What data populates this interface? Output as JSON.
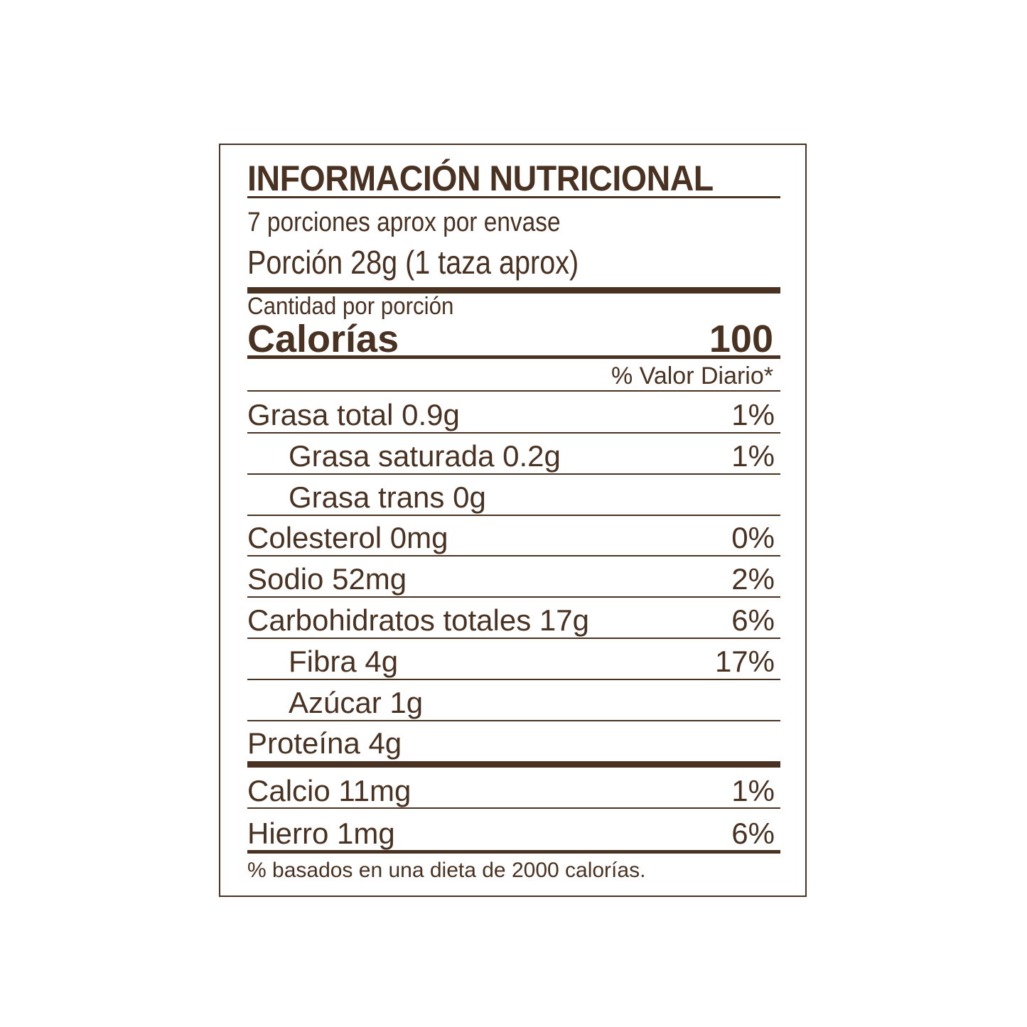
{
  "label": {
    "title": "INFORMACIÓN NUTRICIONAL",
    "servings_per_container": "7 porciones aprox por envase",
    "serving_size": "Porción 28g  (1 taza aprox)",
    "amount_per_serving": "Cantidad por porción",
    "calories_label": "Calorías",
    "calories_value": "100",
    "daily_value_header": "% Valor Diario*",
    "nutrients": [
      {
        "label": "Grasa total  0.9g",
        "pct": "1%",
        "indent": false
      },
      {
        "label": "Grasa saturada  0.2g",
        "pct": "1%",
        "indent": true
      },
      {
        "label": "Grasa trans  0g",
        "pct": "",
        "indent": true
      },
      {
        "label": "Colesterol  0mg",
        "pct": "0%",
        "indent": false
      },
      {
        "label": "Sodio  52mg",
        "pct": "2%",
        "indent": false
      },
      {
        "label": "Carbohidratos totales  17g",
        "pct": "6%",
        "indent": false
      },
      {
        "label": "Fibra  4g",
        "pct": "17%",
        "indent": true
      },
      {
        "label": "Azúcar  1g",
        "pct": "",
        "indent": true
      },
      {
        "label": "Proteína  4g",
        "pct": "",
        "indent": false
      }
    ],
    "minerals": [
      {
        "label": "Calcio  11mg",
        "pct": "1%"
      },
      {
        "label": "Hierro  1mg",
        "pct": "6%"
      }
    ],
    "footnote": "% basados en una dieta de 2000 calorías.",
    "ink_color": "#4a3222"
  }
}
